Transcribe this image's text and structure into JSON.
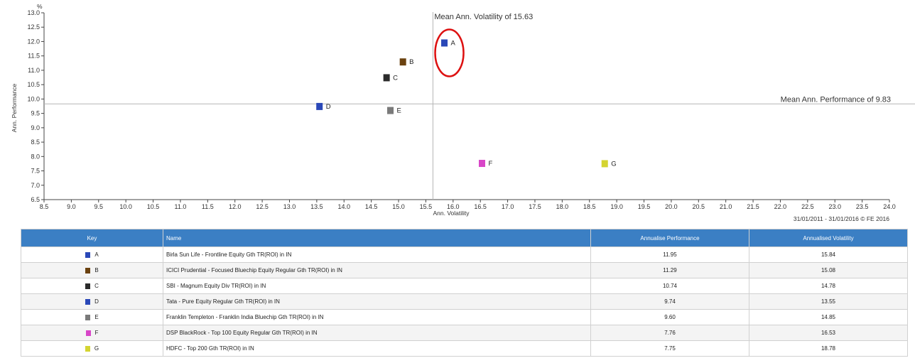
{
  "chart_data": {
    "type": "scatter",
    "xlabel": "Ann. Volatility",
    "ylabel": "Ann. Performance",
    "y_unit": "%",
    "xlim": [
      8.5,
      24.0
    ],
    "ylim": [
      6.5,
      13.0
    ],
    "x_ticks": [
      "8.5",
      "9.0",
      "9.5",
      "10.0",
      "10.5",
      "11.0",
      "11.5",
      "12.0",
      "12.5",
      "13.0",
      "13.5",
      "14.0",
      "14.5",
      "15.0",
      "15.5",
      "16.0",
      "16.5",
      "17.0",
      "17.5",
      "18.0",
      "18.5",
      "19.0",
      "19.5",
      "20.0",
      "20.5",
      "21.0",
      "21.5",
      "22.0",
      "22.5",
      "23.0",
      "23.5",
      "24.0"
    ],
    "y_ticks": [
      "6.5",
      "7.0",
      "7.5",
      "8.0",
      "8.5",
      "9.0",
      "9.5",
      "10.0",
      "10.5",
      "11.0",
      "11.5",
      "12.0",
      "12.5",
      "13.0"
    ],
    "grid": false,
    "mean_volatility": {
      "value": 15.63,
      "label": "Mean Ann. Volatility of 15.63"
    },
    "mean_performance": {
      "value": 9.83,
      "label": "Mean Ann. Performance of 9.83"
    },
    "footnote": "31/01/2011 - 31/01/2016 © FE 2016",
    "highlight": {
      "key": "A",
      "color": "#dd1111"
    },
    "points": [
      {
        "key": "A",
        "x": 15.84,
        "y": 11.95,
        "color": "#2a48b8"
      },
      {
        "key": "B",
        "x": 15.08,
        "y": 11.29,
        "color": "#6b4210"
      },
      {
        "key": "C",
        "x": 14.78,
        "y": 10.74,
        "color": "#2b2b2b"
      },
      {
        "key": "D",
        "x": 13.55,
        "y": 9.74,
        "color": "#2a48b8"
      },
      {
        "key": "E",
        "x": 14.85,
        "y": 9.6,
        "color": "#7a7a7a"
      },
      {
        "key": "F",
        "x": 16.53,
        "y": 7.76,
        "color": "#d846c8"
      },
      {
        "key": "G",
        "x": 18.78,
        "y": 7.75,
        "color": "#d4d431"
      }
    ]
  },
  "table": {
    "headers": {
      "key": "Key",
      "name": "Name",
      "perf": "Annualise Performance",
      "vol": "Annualised Volatility"
    },
    "rows": [
      {
        "key": "A",
        "color": "#2a48b8",
        "name": "Birla Sun Life - Frontline Equity Gth TR(ROI) in IN",
        "perf": "11.95",
        "vol": "15.84"
      },
      {
        "key": "B",
        "color": "#6b4210",
        "name": "ICICI Prudential - Focused Bluechip Equity Regular Gth TR(ROI) in IN",
        "perf": "11.29",
        "vol": "15.08"
      },
      {
        "key": "C",
        "color": "#2b2b2b",
        "name": "SBI - Magnum Equity Div TR(ROI) in IN",
        "perf": "10.74",
        "vol": "14.78"
      },
      {
        "key": "D",
        "color": "#2a48b8",
        "name": "Tata - Pure Equity Regular Gth TR(ROI) in IN",
        "perf": "9.74",
        "vol": "13.55"
      },
      {
        "key": "E",
        "color": "#7a7a7a",
        "name": "Franklin Templeton - Franklin India Bluechip Gth TR(ROI) in IN",
        "perf": "9.60",
        "vol": "14.85"
      },
      {
        "key": "F",
        "color": "#d846c8",
        "name": "DSP BlackRock - Top 100 Equity Regular Gth TR(ROI) in IN",
        "perf": "7.76",
        "vol": "16.53"
      },
      {
        "key": "G",
        "color": "#d4d431",
        "name": "HDFC - Top 200 Gth TR(ROI) in IN",
        "perf": "7.75",
        "vol": "18.78"
      }
    ]
  }
}
